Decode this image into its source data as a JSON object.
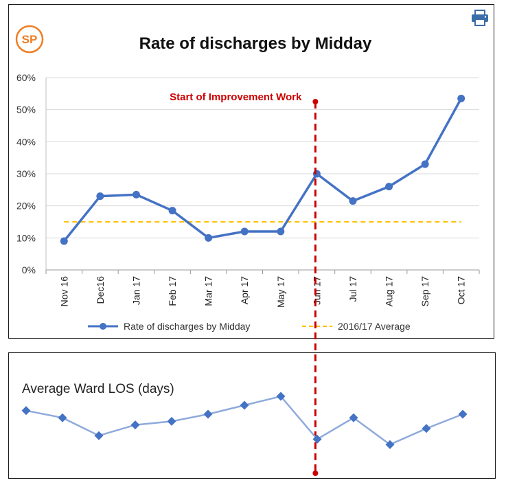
{
  "logo": {
    "text": "SP",
    "color": "#f07d22"
  },
  "print_icon": "print-icon",
  "chart_data": [
    {
      "type": "line",
      "title": "Rate of discharges by Midday",
      "categories": [
        "Nov 16",
        "Dec16",
        "Jan 17",
        "Feb 17",
        "Mar 17",
        "Apr 17",
        "May 17",
        "Jun 17",
        "Jul 17",
        "Aug 17",
        "Sep 17",
        "Oct 17"
      ],
      "series": [
        {
          "name": "Rate of discharges by Midday",
          "values": [
            9,
            23,
            23.5,
            18.5,
            10,
            12,
            12,
            30,
            21.5,
            26,
            33,
            53.5
          ],
          "color": "#4472c4"
        },
        {
          "name": "2016/17 Average",
          "values": [
            15,
            15,
            15,
            15,
            15,
            15,
            15,
            15,
            15,
            15,
            15,
            15
          ],
          "color": "#ffc000",
          "style": "dashed"
        }
      ],
      "ylim": [
        0,
        60
      ],
      "yticks": [
        "0%",
        "10%",
        "20%",
        "30%",
        "40%",
        "50%",
        "60%"
      ],
      "legend_position": "bottom",
      "annotation": {
        "text": "Start of Improvement Work",
        "category": "Jun 17",
        "color": "#cc0000"
      }
    },
    {
      "type": "line",
      "title": "Average Ward LOS (days)",
      "series": [
        {
          "name": "",
          "values": [
            5.2,
            4.8,
            3.8,
            4.4,
            4.6,
            5.0,
            5.5,
            6.0,
            3.6,
            4.8,
            3.3,
            4.2,
            5.0
          ],
          "color": "#8eaadb"
        }
      ],
      "ylim": [
        3,
        6.5
      ]
    }
  ]
}
